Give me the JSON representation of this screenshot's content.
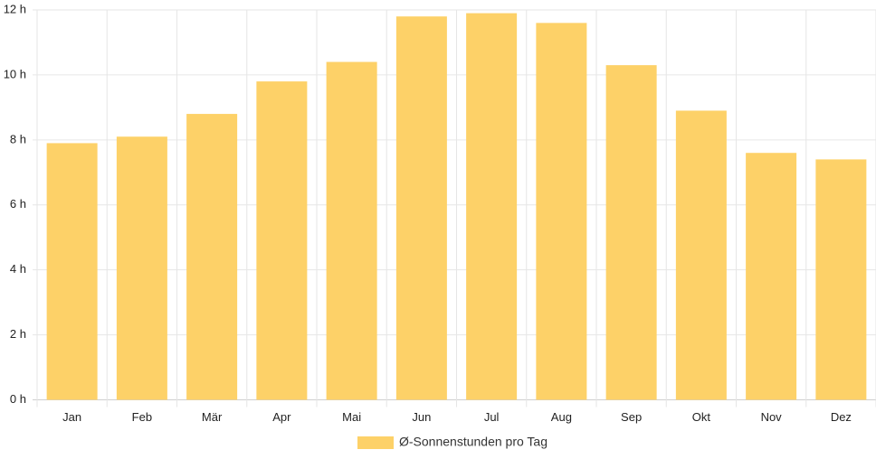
{
  "chart_data": {
    "type": "bar",
    "categories": [
      "Jan",
      "Feb",
      "Mär",
      "Apr",
      "Mai",
      "Jun",
      "Jul",
      "Aug",
      "Sep",
      "Okt",
      "Nov",
      "Dez"
    ],
    "series": [
      {
        "name": "Ø-Sonnenstunden pro Tag",
        "values": [
          7.9,
          8.1,
          8.8,
          9.8,
          10.4,
          11.8,
          11.9,
          11.6,
          10.3,
          8.9,
          7.6,
          7.4
        ],
        "color": "#fdd168"
      }
    ],
    "ylim": [
      0,
      12
    ],
    "yticks": [
      0,
      2,
      4,
      6,
      8,
      10,
      12
    ],
    "ytick_suffix": " h",
    "grid": true,
    "legend_position": "bottom-center",
    "title": "",
    "xlabel": "",
    "ylabel": ""
  }
}
